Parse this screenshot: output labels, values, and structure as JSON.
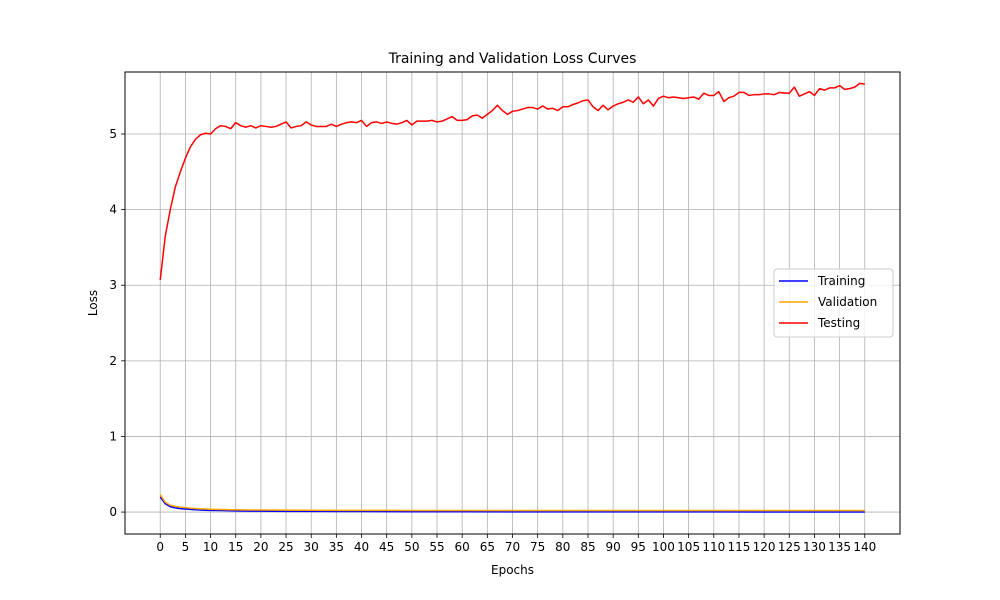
{
  "chart_data": {
    "type": "line",
    "title": "Training and Validation Loss Curves",
    "xlabel": "Epochs",
    "ylabel": "Loss",
    "xlim": [
      -7,
      147
    ],
    "ylim": [
      -0.29,
      5.82
    ],
    "xticks": [
      0,
      5,
      10,
      15,
      20,
      25,
      30,
      35,
      40,
      45,
      50,
      55,
      60,
      65,
      70,
      75,
      80,
      85,
      90,
      95,
      100,
      105,
      110,
      115,
      120,
      125,
      130,
      135,
      140
    ],
    "yticks": [
      0,
      1,
      2,
      3,
      4,
      5
    ],
    "grid": true,
    "legend_position": "center-right",
    "series": [
      {
        "name": "Training",
        "color": "#0000ff",
        "x": [
          0,
          1,
          2,
          3,
          4,
          5,
          6,
          7,
          8,
          9,
          10,
          12,
          14,
          16,
          18,
          20,
          25,
          30,
          35,
          40,
          45,
          50,
          60,
          70,
          80,
          90,
          100,
          110,
          120,
          130,
          140
        ],
        "values": [
          0.2,
          0.11,
          0.07,
          0.055,
          0.045,
          0.04,
          0.035,
          0.03,
          0.027,
          0.024,
          0.022,
          0.02,
          0.017,
          0.015,
          0.013,
          0.012,
          0.01,
          0.009,
          0.008,
          0.007,
          0.006,
          0.005,
          0.004,
          0.003,
          0.003,
          0.002,
          0.002,
          0.002,
          0.001,
          0.001,
          0.001
        ]
      },
      {
        "name": "Validation",
        "color": "#ffa500",
        "x": [
          0,
          1,
          2,
          3,
          4,
          5,
          6,
          7,
          8,
          9,
          10,
          12,
          14,
          16,
          18,
          20,
          25,
          30,
          35,
          40,
          45,
          50,
          60,
          70,
          80,
          90,
          100,
          110,
          120,
          130,
          140
        ],
        "values": [
          0.23,
          0.13,
          0.09,
          0.075,
          0.065,
          0.058,
          0.052,
          0.047,
          0.043,
          0.04,
          0.037,
          0.034,
          0.031,
          0.029,
          0.028,
          0.027,
          0.025,
          0.024,
          0.023,
          0.022,
          0.022,
          0.021,
          0.021,
          0.02,
          0.02,
          0.02,
          0.02,
          0.02,
          0.02,
          0.02,
          0.02
        ]
      },
      {
        "name": "Testing",
        "color": "#ff0000",
        "x": [
          0,
          1,
          2,
          3,
          4,
          5,
          6,
          7,
          8,
          9,
          10,
          11,
          12,
          13,
          14,
          15,
          16,
          17,
          18,
          19,
          20,
          21,
          22,
          23,
          24,
          25,
          26,
          27,
          28,
          29,
          30,
          31,
          32,
          33,
          34,
          35,
          36,
          37,
          38,
          39,
          40,
          41,
          42,
          43,
          44,
          45,
          46,
          47,
          48,
          49,
          50,
          51,
          52,
          53,
          54,
          55,
          56,
          57,
          58,
          59,
          60,
          61,
          62,
          63,
          64,
          65,
          66,
          67,
          68,
          69,
          70,
          71,
          72,
          73,
          74,
          75,
          76,
          77,
          78,
          79,
          80,
          81,
          82,
          83,
          84,
          85,
          86,
          87,
          88,
          89,
          90,
          91,
          92,
          93,
          94,
          95,
          96,
          97,
          98,
          99,
          100,
          101,
          102,
          103,
          104,
          105,
          106,
          107,
          108,
          109,
          110,
          111,
          112,
          113,
          114,
          115,
          116,
          117,
          118,
          119,
          120,
          121,
          122,
          123,
          124,
          125,
          126,
          127,
          128,
          129,
          130,
          131,
          132,
          133,
          134,
          135,
          136,
          137,
          138,
          139,
          140
        ],
        "values": [
          3.07,
          3.65,
          4.0,
          4.3,
          4.5,
          4.68,
          4.83,
          4.93,
          4.99,
          5.01,
          5.0,
          5.07,
          5.11,
          5.1,
          5.07,
          5.15,
          5.11,
          5.09,
          5.11,
          5.08,
          5.11,
          5.1,
          5.09,
          5.1,
          5.13,
          5.16,
          5.08,
          5.1,
          5.11,
          5.16,
          5.12,
          5.1,
          5.1,
          5.1,
          5.13,
          5.1,
          5.13,
          5.15,
          5.16,
          5.15,
          5.18,
          5.1,
          5.15,
          5.16,
          5.14,
          5.16,
          5.14,
          5.13,
          5.15,
          5.18,
          5.12,
          5.17,
          5.17,
          5.17,
          5.18,
          5.16,
          5.17,
          5.2,
          5.23,
          5.18,
          5.18,
          5.19,
          5.24,
          5.25,
          5.21,
          5.26,
          5.31,
          5.38,
          5.31,
          5.26,
          5.3,
          5.31,
          5.33,
          5.35,
          5.35,
          5.33,
          5.37,
          5.33,
          5.34,
          5.31,
          5.36,
          5.36,
          5.39,
          5.41,
          5.44,
          5.45,
          5.36,
          5.31,
          5.38,
          5.32,
          5.37,
          5.4,
          5.42,
          5.45,
          5.42,
          5.49,
          5.4,
          5.45,
          5.37,
          5.47,
          5.5,
          5.48,
          5.49,
          5.48,
          5.47,
          5.48,
          5.49,
          5.46,
          5.54,
          5.51,
          5.51,
          5.56,
          5.43,
          5.48,
          5.5,
          5.55,
          5.55,
          5.51,
          5.52,
          5.52,
          5.53,
          5.53,
          5.52,
          5.55,
          5.54,
          5.54,
          5.62,
          5.5,
          5.53,
          5.56,
          5.51,
          5.6,
          5.58,
          5.61,
          5.61,
          5.64,
          5.59,
          5.6,
          5.62,
          5.67,
          5.66
        ]
      }
    ]
  }
}
